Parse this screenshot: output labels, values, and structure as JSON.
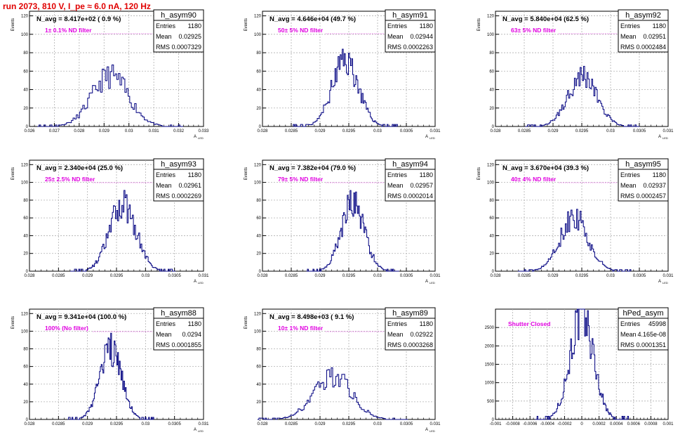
{
  "run_title": "run 2073,   810 V, I_pe ≈ 6.0 nA, 120 Hz",
  "colors": {
    "hist_line": "#000080",
    "grid": "#b0b0b0",
    "annotation": "#e000e0",
    "title": "#e00000"
  },
  "stats_labels": {
    "entries": "Entries",
    "mean": "Mean",
    "rms": "RMS"
  },
  "chart_data": [
    {
      "type": "histogram",
      "name": "h_asym90",
      "navg": "N_avg = 8.417e+02 ( 0.9 %)",
      "annotation": "1± 0.1% ND filter",
      "stats": {
        "entries": "1180",
        "mean": "0.02925",
        "rms": "0.0007329"
      },
      "ylabel": "Events",
      "xlabel": "A",
      "xlabel_sub": "LED",
      "xlim": [
        0.026,
        0.033
      ],
      "ylim": [
        0,
        125
      ],
      "xticks": [
        0.026,
        0.027,
        0.028,
        0.029,
        0.03,
        0.031,
        0.032,
        0.033
      ],
      "xtick_labels": [
        "0.026",
        "0.027",
        "0.028",
        "0.029",
        "0.03",
        "0.031",
        "0.032",
        "0.033"
      ],
      "yticks": [
        0,
        20,
        40,
        60,
        80,
        100,
        120
      ],
      "grid": true,
      "stats_box": "top-right",
      "mean": 0.02925,
      "sigma": 0.0007329,
      "peak": 55,
      "bins": 90,
      "seed": 11
    },
    {
      "type": "histogram",
      "name": "h_asym91",
      "navg": "N_avg = 4.646e+04 (49.7 %)",
      "annotation": "50± 5% ND filter",
      "stats": {
        "entries": "1180",
        "mean": "0.02944",
        "rms": "0.0002263"
      },
      "ylabel": "Events",
      "xlabel": "A",
      "xlabel_sub": "LED",
      "xlim": [
        0.028,
        0.031
      ],
      "ylim": [
        0,
        125
      ],
      "xticks": [
        0.028,
        0.0285,
        0.029,
        0.0295,
        0.03,
        0.0305,
        0.031
      ],
      "xtick_labels": [
        "0.028",
        "0.0285",
        "0.029",
        "0.0295",
        "0.03",
        "0.0305",
        "0.031"
      ],
      "yticks": [
        0,
        20,
        40,
        60,
        80,
        100,
        120
      ],
      "grid": true,
      "stats_box": "top-right",
      "mean": 0.02944,
      "sigma": 0.0002263,
      "peak": 72,
      "bins": 100,
      "seed": 23
    },
    {
      "type": "histogram",
      "name": "h_asym92",
      "navg": "N_avg = 5.840e+04 (62.5 %)",
      "annotation": "63± 5% ND filter",
      "stats": {
        "entries": "1180",
        "mean": "0.02951",
        "rms": "0.0002484"
      },
      "ylabel": "Events",
      "xlabel": "A",
      "xlabel_sub": "LED",
      "xlim": [
        0.028,
        0.031
      ],
      "ylim": [
        0,
        125
      ],
      "xticks": [
        0.028,
        0.0285,
        0.029,
        0.0295,
        0.03,
        0.0305,
        0.031
      ],
      "xtick_labels": [
        "0.028",
        "0.0285",
        "0.029",
        "0.0295",
        "0.03",
        "0.0305",
        "0.031"
      ],
      "yticks": [
        0,
        20,
        40,
        60,
        80,
        100,
        120
      ],
      "grid": true,
      "stats_box": "top-right",
      "mean": 0.02951,
      "sigma": 0.0002484,
      "peak": 56,
      "bins": 100,
      "seed": 37
    },
    {
      "type": "histogram",
      "name": "h_asym93",
      "navg": "N_avg = 2.340e+04 (25.0 %)",
      "annotation": "25± 2.5% ND filter",
      "stats": {
        "entries": "1180",
        "mean": "0.02961",
        "rms": "0.0002269"
      },
      "ylabel": "Events",
      "xlabel": "A",
      "xlabel_sub": "LED",
      "xlim": [
        0.028,
        0.031
      ],
      "ylim": [
        0,
        125
      ],
      "xticks": [
        0.028,
        0.0285,
        0.029,
        0.0295,
        0.03,
        0.0305,
        0.031
      ],
      "xtick_labels": [
        "0.028",
        "0.0285",
        "0.029",
        "0.0295",
        "0.03",
        "0.0305",
        "0.031"
      ],
      "yticks": [
        0,
        20,
        40,
        60,
        80,
        100,
        120
      ],
      "grid": true,
      "stats_box": "top-right",
      "mean": 0.02961,
      "sigma": 0.0002269,
      "peak": 76,
      "bins": 100,
      "seed": 41
    },
    {
      "type": "histogram",
      "name": "h_asym94",
      "navg": "N_avg = 7.382e+04 (79.0 %)",
      "annotation": "79± 5% ND filter",
      "stats": {
        "entries": "1180",
        "mean": "0.02957",
        "rms": "0.0002014"
      },
      "ylabel": "Events",
      "xlabel": "A",
      "xlabel_sub": "LED",
      "xlim": [
        0.028,
        0.031
      ],
      "ylim": [
        0,
        125
      ],
      "xticks": [
        0.028,
        0.0285,
        0.029,
        0.0295,
        0.03,
        0.0305,
        0.031
      ],
      "xtick_labels": [
        "0.028",
        "0.0285",
        "0.029",
        "0.0295",
        "0.03",
        "0.0305",
        "0.031"
      ],
      "yticks": [
        0,
        20,
        40,
        60,
        80,
        100,
        120
      ],
      "grid": true,
      "stats_box": "top-right",
      "mean": 0.02957,
      "sigma": 0.0002014,
      "peak": 77,
      "bins": 100,
      "seed": 53
    },
    {
      "type": "histogram",
      "name": "h_asym95",
      "navg": "N_avg = 3.670e+04 (39.3 %)",
      "annotation": "40± 4% ND filter",
      "stats": {
        "entries": "1180",
        "mean": "0.02937",
        "rms": "0.0002457"
      },
      "ylabel": "Events",
      "xlabel": "A",
      "xlabel_sub": "LED",
      "xlim": [
        0.028,
        0.031
      ],
      "ylim": [
        0,
        125
      ],
      "xticks": [
        0.028,
        0.0285,
        0.029,
        0.0295,
        0.03,
        0.0305,
        0.031
      ],
      "xtick_labels": [
        "0.028",
        "0.0285",
        "0.029",
        "0.0295",
        "0.03",
        "0.0305",
        "0.031"
      ],
      "yticks": [
        0,
        20,
        40,
        60,
        80,
        100,
        120
      ],
      "grid": true,
      "stats_box": "top-right",
      "mean": 0.02937,
      "sigma": 0.0002457,
      "peak": 61,
      "bins": 100,
      "seed": 67
    },
    {
      "type": "histogram",
      "name": "h_asym88",
      "navg": "N_avg = 9.341e+04 (100.0 %)",
      "annotation": "100% (No filter)",
      "stats": {
        "entries": "1180",
        "mean": "0.0294",
        "rms": "0.0001855"
      },
      "ylabel": "Events",
      "xlabel": "A",
      "xlabel_sub": "LED",
      "xlim": [
        0.028,
        0.031
      ],
      "ylim": [
        0,
        125
      ],
      "xticks": [
        0.028,
        0.0285,
        0.029,
        0.0295,
        0.03,
        0.0305,
        0.031
      ],
      "xtick_labels": [
        "0.028",
        "0.0285",
        "0.029",
        "0.0295",
        "0.03",
        "0.0305",
        "0.031"
      ],
      "yticks": [
        0,
        20,
        40,
        60,
        80,
        100,
        120
      ],
      "grid": true,
      "stats_box": "top-right",
      "mean": 0.0294,
      "sigma": 0.0001855,
      "peak": 80,
      "bins": 100,
      "seed": 79
    },
    {
      "type": "histogram",
      "name": "h_asym89",
      "navg": "N_avg = 8.498e+03 ( 9.1 %)",
      "annotation": "10± 1% ND filter",
      "stats": {
        "entries": "1180",
        "mean": "0.02922",
        "rms": "0.0003268"
      },
      "ylabel": "Events",
      "xlabel": "A",
      "xlabel_sub": "LED",
      "xlim": [
        0.028,
        0.031
      ],
      "ylim": [
        0,
        125
      ],
      "xticks": [
        0.028,
        0.0285,
        0.029,
        0.0295,
        0.03,
        0.0305,
        0.031
      ],
      "xtick_labels": [
        "0.028",
        "0.0285",
        "0.029",
        "0.0295",
        "0.03",
        "0.0305",
        "0.031"
      ],
      "yticks": [
        0,
        20,
        40,
        60,
        80,
        100,
        120
      ],
      "grid": true,
      "stats_box": "top-right",
      "mean": 0.02922,
      "sigma": 0.0003268,
      "peak": 49,
      "bins": 100,
      "seed": 83
    },
    {
      "type": "histogram",
      "name": "hPed_asym",
      "navg": "",
      "annotation": "Shutter Closed",
      "stats": {
        "entries": "45998",
        "mean": "4.165e-08",
        "rms": "0.0001351"
      },
      "ylabel": "",
      "xlabel": "",
      "xlabel_sub": "",
      "xlim": [
        -0.001,
        0.001
      ],
      "ylim": [
        0,
        3000
      ],
      "xticks": [
        -0.001,
        -0.0008,
        -0.0006,
        -0.0004,
        -0.0002,
        0,
        0.0002,
        0.0004,
        0.0006,
        0.0008,
        0.001
      ],
      "xtick_labels": [
        "-0.001",
        "-0.0008",
        "-0.0006",
        "-0.0004",
        "-0.0002",
        "0",
        "0.0002",
        "0.0004",
        "0.0006",
        "0.0008",
        "0.001"
      ],
      "yticks": [
        0,
        500,
        1000,
        1500,
        2000,
        2500
      ],
      "grid": true,
      "stats_box": "top-right",
      "mean": 0.0,
      "sigma": 0.0001351,
      "peak": 2850,
      "bins": 100,
      "seed": 97
    }
  ]
}
